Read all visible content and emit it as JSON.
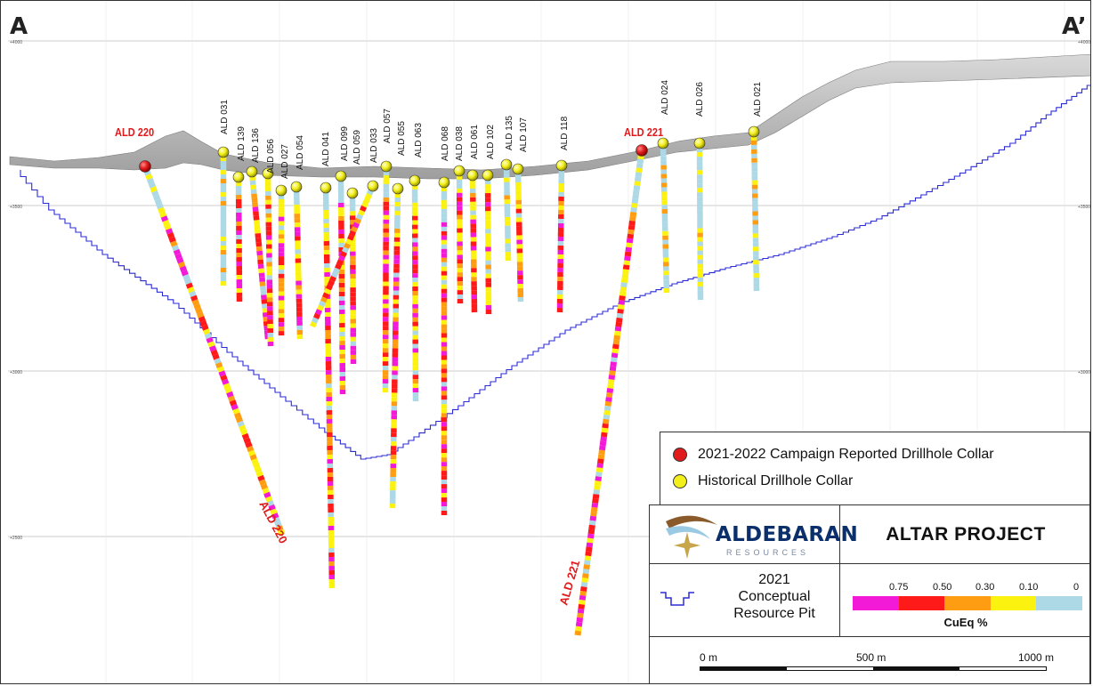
{
  "section": {
    "left_label": "A",
    "right_label": "A’"
  },
  "elevation_ticks": [
    "+4000",
    "+3500",
    "+3000",
    "+2500"
  ],
  "drillholes": [
    {
      "id": "ALD 220",
      "campaign": "2021-2022"
    },
    {
      "id": "ALD 221",
      "campaign": "2021-2022"
    },
    {
      "id": "ALD 031",
      "campaign": "historical"
    },
    {
      "id": "ALD 139",
      "campaign": "historical"
    },
    {
      "id": "ALD 136",
      "campaign": "historical"
    },
    {
      "id": "ALD 056",
      "campaign": "historical"
    },
    {
      "id": "ALD 027",
      "campaign": "historical"
    },
    {
      "id": "ALD 054",
      "campaign": "historical"
    },
    {
      "id": "ALD 041",
      "campaign": "historical"
    },
    {
      "id": "ALD 099",
      "campaign": "historical"
    },
    {
      "id": "ALD 059",
      "campaign": "historical"
    },
    {
      "id": "ALD 033",
      "campaign": "historical"
    },
    {
      "id": "ALD 057",
      "campaign": "historical"
    },
    {
      "id": "ALD 055",
      "campaign": "historical"
    },
    {
      "id": "ALD 063",
      "campaign": "historical"
    },
    {
      "id": "ALD 068",
      "campaign": "historical"
    },
    {
      "id": "ALD 038",
      "campaign": "historical"
    },
    {
      "id": "ALD 061",
      "campaign": "historical"
    },
    {
      "id": "ALD 102",
      "campaign": "historical"
    },
    {
      "id": "ALD 135",
      "campaign": "historical"
    },
    {
      "id": "ALD 107",
      "campaign": "historical"
    },
    {
      "id": "ALD 118",
      "campaign": "historical"
    },
    {
      "id": "ALD 024",
      "campaign": "historical"
    },
    {
      "id": "ALD 026",
      "campaign": "historical"
    },
    {
      "id": "ALD 021",
      "campaign": "historical"
    }
  ],
  "legend": {
    "campaign_label": "2021-2022 Campaign Reported Drillhole Collar",
    "historical_label": "Historical Drillhole Collar",
    "campaign_color": "#e01b1b",
    "historical_color": "#f2ef1a"
  },
  "info": {
    "company": "ALDEBARAN",
    "company_sub": "RESOURCES",
    "project": "ALTAR PROJECT",
    "pit_year": "2021",
    "pit_line1": "Conceptual",
    "pit_line2": "Resource Pit",
    "pit_color": "#2b2bd6",
    "grade_title": "CuEq %",
    "grade_ticks": [
      "0.75",
      "0.50",
      "0.30",
      "0.10",
      "0"
    ],
    "grade_colors": [
      "#f21ad6",
      "#ff1a1a",
      "#ff9d12",
      "#fbf20f",
      "#add8e6"
    ],
    "scale_labels": [
      "0 m",
      "500 m",
      "1000 m"
    ]
  }
}
